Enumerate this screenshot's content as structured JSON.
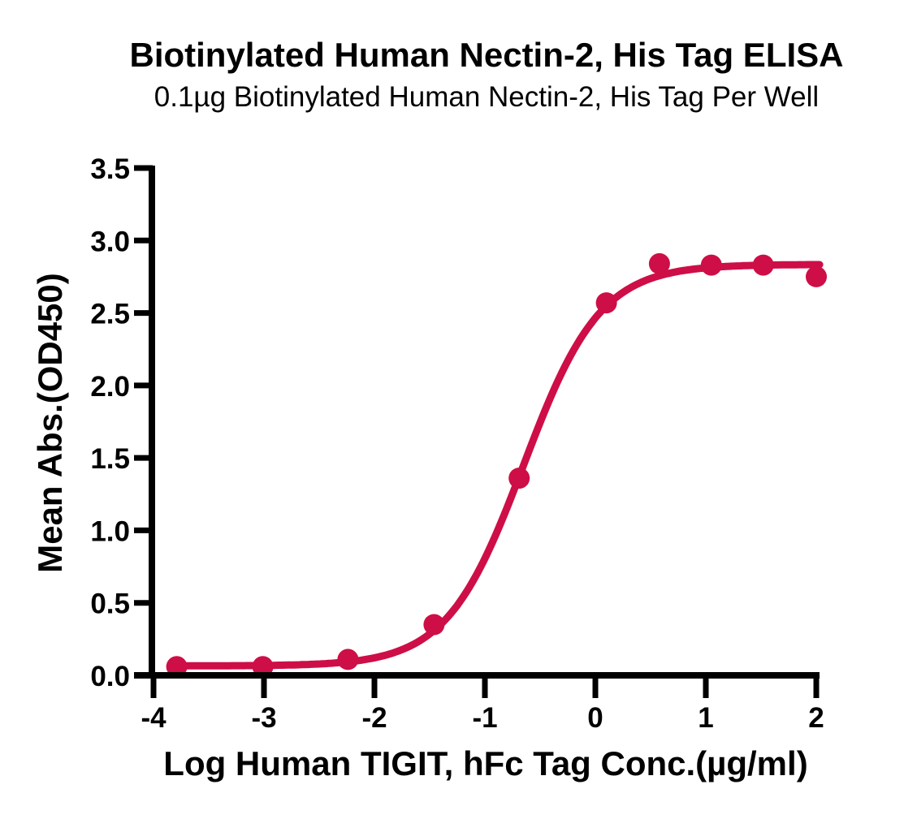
{
  "chart_data": {
    "type": "scatter",
    "fit_model": "4PL sigmoidal dose-response curve",
    "title": "Biotinylated Human Nectin-2, His Tag ELISA",
    "subtitle": "0.1µg Biotinylated Human Nectin-2, His Tag Per Well",
    "xlabel": "Log Human TIGIT, hFc Tag Conc.(µg/ml)",
    "ylabel": "Mean Abs.(OD450)",
    "xlim": [
      -4,
      2
    ],
    "ylim": [
      0,
      3.5
    ],
    "grid": false,
    "legend": null,
    "xticks": {
      "values": [
        -4,
        -3,
        -2,
        -1,
        0,
        1,
        2
      ],
      "labels": [
        "-4",
        "-3",
        "-2",
        "-1",
        "0",
        "1",
        "2"
      ]
    },
    "yticks": {
      "values": [
        0,
        0.5,
        1.0,
        1.5,
        2.0,
        2.5,
        3.0,
        3.5
      ],
      "labels": [
        "0.0",
        "0.5",
        "1.0",
        "1.5",
        "2.0",
        "2.5",
        "3.0",
        "3.5"
      ]
    },
    "points": {
      "x": [
        -3.79,
        -3.01,
        -2.24,
        -1.46,
        -0.69,
        0.1,
        0.58,
        1.05,
        1.52,
        2.0
      ],
      "y": [
        0.06,
        0.06,
        0.11,
        0.35,
        1.36,
        2.57,
        2.84,
        2.83,
        2.83,
        2.75
      ]
    },
    "fit": {
      "bottom": 0.065,
      "top": 2.835,
      "logEC50": -0.65,
      "hillslope": 1.25,
      "x_start": -3.79,
      "x_end": 2.03
    },
    "colors": {
      "curve": "#CE0E46",
      "points": "#CE0E46",
      "axis": "#000000",
      "background": "#FFFFFF"
    }
  }
}
